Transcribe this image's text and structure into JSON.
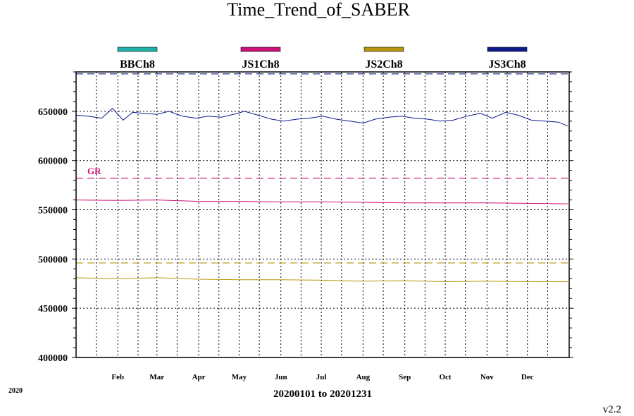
{
  "chart_data": {
    "type": "line",
    "title": "Time_Trend_of_SABER",
    "date_range_label": "20200101 to 20201231",
    "year_label": "2020",
    "version_label": "v2.2",
    "x_range": [
      "2020-01-01",
      "2020-12-31"
    ],
    "x_tick_labels": [
      "Feb",
      "Mar",
      "Apr",
      "May",
      "Jun",
      "Jul",
      "Aug",
      "Sep",
      "Oct",
      "Nov",
      "Dec"
    ],
    "x_tick_dates": [
      "2020-02-01",
      "2020-03-01",
      "2020-04-01",
      "2020-05-01",
      "2020-06-01",
      "2020-07-01",
      "2020-08-01",
      "2020-09-01",
      "2020-10-01",
      "2020-11-01",
      "2020-12-01"
    ],
    "ylim": [
      400000,
      690000
    ],
    "y_ticks": [
      400000,
      450000,
      500000,
      550000,
      600000,
      650000
    ],
    "y_tick_labels": [
      "400000",
      "450000",
      "500000",
      "550000",
      "600000",
      "650000"
    ],
    "grid": true,
    "legend_placement": "top",
    "series": [
      {
        "name": "BBCh8",
        "color": "#20b2aa",
        "x": [],
        "y": []
      },
      {
        "name": "JS1Ch8",
        "color": "#cc1177",
        "x": [
          "2020-01-01",
          "2020-02-01",
          "2020-03-01",
          "2020-04-01",
          "2020-05-01",
          "2020-06-01",
          "2020-07-01",
          "2020-08-01",
          "2020-09-01",
          "2020-10-01",
          "2020-11-01",
          "2020-12-01",
          "2020-12-31"
        ],
        "y": [
          560000,
          559500,
          560000,
          558500,
          558500,
          558000,
          558000,
          557500,
          557000,
          557000,
          557000,
          556500,
          556000
        ]
      },
      {
        "name": "JS2Ch8",
        "color": "#b8960c",
        "x": [
          "2020-01-01",
          "2020-02-01",
          "2020-03-01",
          "2020-04-01",
          "2020-05-01",
          "2020-06-01",
          "2020-07-01",
          "2020-08-01",
          "2020-09-01",
          "2020-10-01",
          "2020-11-01",
          "2020-12-01",
          "2020-12-31"
        ],
        "y": [
          481000,
          480000,
          481000,
          479500,
          479000,
          479000,
          478500,
          477500,
          478000,
          477000,
          477500,
          477000,
          477000
        ]
      },
      {
        "name": "JS3Ch8",
        "color": "#0d1a8c",
        "x": [
          "2020-01-01",
          "2020-01-10",
          "2020-01-20",
          "2020-01-28",
          "2020-02-05",
          "2020-02-12",
          "2020-02-20",
          "2020-03-01",
          "2020-03-10",
          "2020-03-20",
          "2020-03-30",
          "2020-04-08",
          "2020-04-18",
          "2020-04-27",
          "2020-05-05",
          "2020-05-15",
          "2020-05-25",
          "2020-06-03",
          "2020-06-13",
          "2020-06-22",
          "2020-07-02",
          "2020-07-12",
          "2020-07-22",
          "2020-08-01",
          "2020-08-10",
          "2020-08-20",
          "2020-08-30",
          "2020-09-08",
          "2020-09-18",
          "2020-09-27",
          "2020-10-07",
          "2020-10-17",
          "2020-10-27",
          "2020-11-05",
          "2020-11-15",
          "2020-11-24",
          "2020-12-04",
          "2020-12-14",
          "2020-12-24",
          "2020-12-31"
        ],
        "y": [
          646000,
          645000,
          643000,
          653000,
          641000,
          649000,
          648000,
          647000,
          650000,
          645000,
          643000,
          645000,
          644000,
          647000,
          650000,
          646000,
          642000,
          640000,
          642000,
          643000,
          645000,
          642000,
          640000,
          638000,
          642000,
          644000,
          645000,
          643000,
          642000,
          640000,
          641000,
          645000,
          648000,
          643000,
          649000,
          646000,
          641000,
          640000,
          639000,
          635000
        ]
      }
    ],
    "reference_lines": [
      {
        "label": "GR",
        "value": 582000,
        "color": "#cc1177",
        "style": "dashed"
      },
      {
        "label": "",
        "value": 496000,
        "color": "#b8960c",
        "style": "dashed"
      },
      {
        "label": "",
        "value": 688000,
        "color": "#0d1a8c",
        "style": "dashed"
      }
    ]
  }
}
